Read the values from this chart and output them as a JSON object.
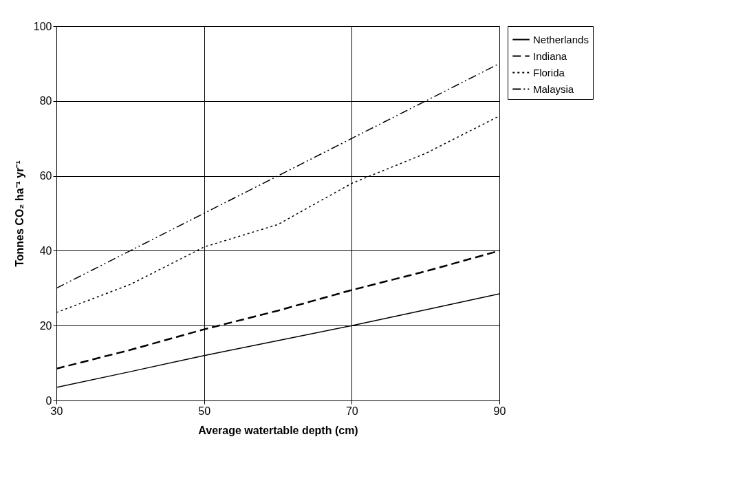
{
  "chart_data": {
    "type": "line",
    "xlabel": "Average watertable depth (cm)",
    "ylabel": "Tonnes CO₂ ha⁻¹ yr⁻¹",
    "x": [
      30,
      40,
      50,
      60,
      70,
      80,
      90
    ],
    "series": [
      {
        "name": "Netherlands",
        "color": "#000000",
        "line_style": "solid",
        "values": [
          3.5,
          7.7,
          12,
          16,
          20,
          24.2,
          28.5
        ]
      },
      {
        "name": "Indiana",
        "color": "#000000",
        "line_style": "dashed",
        "values": [
          8.5,
          13.5,
          19,
          24,
          29.5,
          34.5,
          40
        ]
      },
      {
        "name": "Florida",
        "color": "#000000",
        "line_style": "dotted",
        "values": [
          23.5,
          31,
          41,
          47,
          58,
          66,
          76
        ]
      },
      {
        "name": "Malaysia",
        "color": "#000000",
        "line_style": "dashdot",
        "values": [
          30,
          40,
          50,
          60,
          70,
          80,
          90
        ]
      }
    ],
    "xlim": [
      30,
      90
    ],
    "xticks": [
      30,
      50,
      70,
      90
    ],
    "ylim": [
      0,
      100
    ],
    "yticks": [
      0,
      20,
      40,
      60,
      80,
      100
    ],
    "grid": true,
    "legend": "right",
    "marker": "none"
  }
}
